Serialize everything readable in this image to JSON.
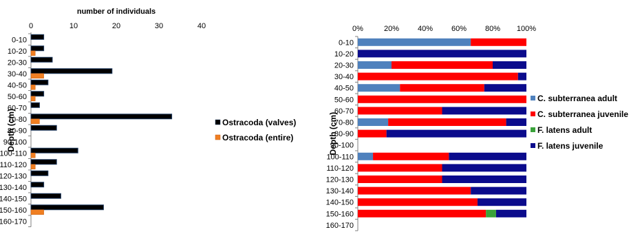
{
  "chart_data": [
    {
      "type": "bar",
      "orientation": "horizontal",
      "categories": [
        "0-10",
        "10-20",
        "20-30",
        "30-40",
        "40-50",
        "50-60",
        "60-70",
        "70-80",
        "80-90",
        "90-100",
        "100-110",
        "110-120",
        "120-130",
        "130-140",
        "140-150",
        "150-160",
        "160-170"
      ],
      "series": [
        {
          "name": "Ostracoda (valves)",
          "values": [
            3,
            3,
            5,
            19,
            4,
            3,
            2,
            33,
            6,
            0,
            11,
            6,
            4,
            3,
            7,
            17,
            0
          ]
        },
        {
          "name": "Ostracoda (entire)",
          "values": [
            0,
            1,
            0,
            3,
            1,
            1,
            0,
            2,
            0,
            0,
            1,
            1,
            0,
            0,
            0,
            3,
            0
          ]
        }
      ],
      "title": "",
      "xlabel": "number of individuals",
      "ylabel": "Depth (cm)",
      "xlim": [
        0,
        40
      ],
      "xticks": [
        "0",
        "10",
        "20",
        "30",
        "40"
      ],
      "legend_position": "right",
      "colors": {
        "Ostracoda (valves)": "#000000",
        "Ostracoda (entire)": "#f07f22",
        "edge": "#1f3a60"
      }
    },
    {
      "type": "bar",
      "orientation": "horizontal",
      "stacked": "percent",
      "categories": [
        "0-10",
        "10-20",
        "20-30",
        "30-40",
        "40-50",
        "50-60",
        "60-70",
        "70-80",
        "80-90",
        "90-100",
        "100-110",
        "110-120",
        "120-130",
        "130-140",
        "140-150",
        "150-160",
        "160-170"
      ],
      "series": [
        {
          "name": "C. subterranea adult",
          "values": [
            67,
            0,
            20,
            0,
            25,
            0,
            0,
            18,
            0,
            0,
            9,
            0,
            0,
            0,
            0,
            0,
            0
          ]
        },
        {
          "name": "C. subterranea juvenile",
          "values": [
            33,
            0,
            60,
            95,
            50,
            100,
            50,
            70,
            17,
            0,
            45,
            50,
            50,
            67,
            71,
            76,
            0
          ]
        },
        {
          "name": "F. latens adult",
          "values": [
            0,
            0,
            0,
            0,
            0,
            0,
            0,
            0,
            0,
            0,
            0,
            0,
            0,
            0,
            0,
            6,
            0
          ]
        },
        {
          "name": "F. latens juvenile",
          "values": [
            0,
            100,
            20,
            5,
            25,
            0,
            50,
            12,
            83,
            0,
            46,
            50,
            50,
            33,
            29,
            18,
            0
          ]
        }
      ],
      "title": "",
      "xlabel": "",
      "ylabel": "Depth (cm)",
      "xlim": [
        0,
        100
      ],
      "xticks": [
        "0%",
        "20%",
        "40%",
        "60%",
        "80%",
        "100%"
      ],
      "legend_position": "right",
      "colors": {
        "C. subterranea adult": "#4f81bd",
        "C. subterranea juvenile": "#ff0000",
        "F. latens adult": "#3aa23a",
        "F. latens juvenile": "#0b0b8c"
      }
    }
  ]
}
